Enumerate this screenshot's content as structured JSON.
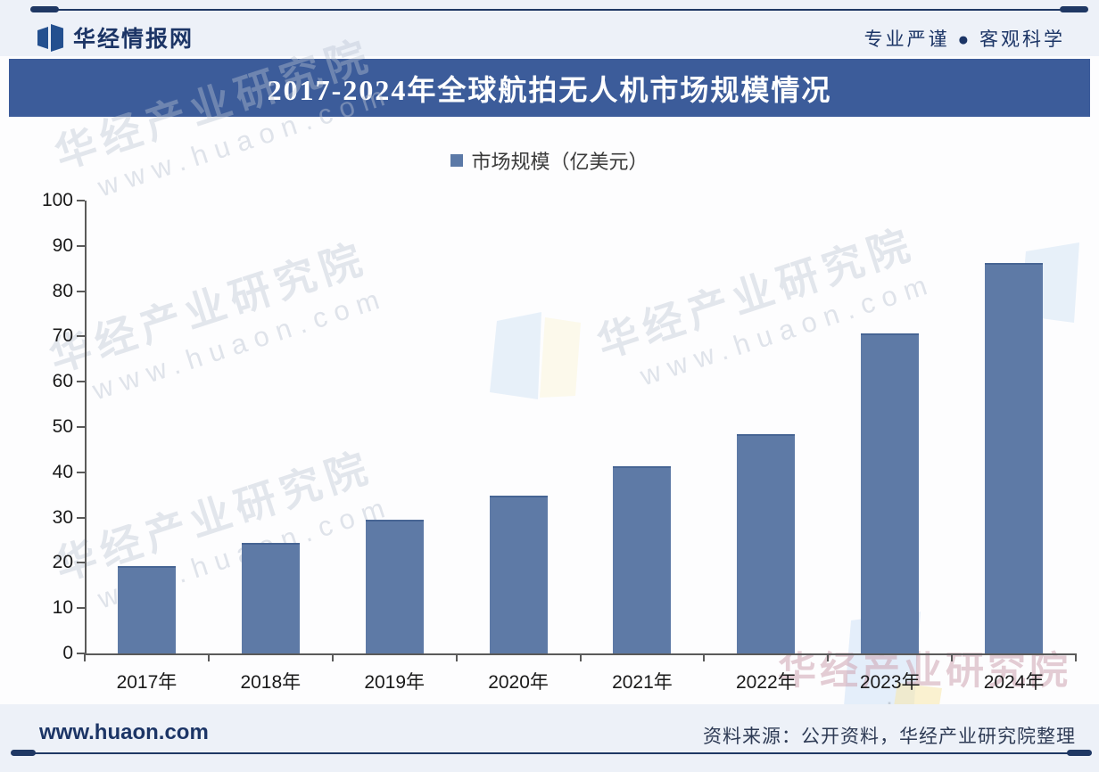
{
  "header": {
    "brand": "华经情报网",
    "slogan": "专业严谨 ● 客观科学"
  },
  "title": "2017-2024年全球航拍无人机市场规模情况",
  "legend": {
    "label": "市场规模（亿美元）"
  },
  "chart_data": {
    "type": "bar",
    "title": "2017-2024年全球航拍无人机市场规模情况",
    "categories": [
      "2017年",
      "2018年",
      "2019年",
      "2020年",
      "2021年",
      "2022年",
      "2023年",
      "2024年"
    ],
    "values": [
      19.3,
      24.4,
      29.6,
      34.9,
      41.3,
      48.4,
      70.7,
      86.2
    ],
    "series_name": "市场规模（亿美元）",
    "ylabel": "",
    "xlabel": "",
    "ylim": [
      0,
      100
    ],
    "ytick_step": 10,
    "grid": false,
    "legend_position": "top-center",
    "bar_color": "#5e7aa6"
  },
  "watermark": {
    "text": "华经产业研究院",
    "url": "www.huaon.com"
  },
  "footer": {
    "site": "www.huaon.com",
    "source": "资料来源：公开资料，华经产业研究院整理"
  },
  "colors": {
    "banner": "#3c5c9a",
    "bar": "#5e7aa6",
    "navy": "#1f3864",
    "strip_bg": "#edf1f8",
    "axis": "#5a5a5a"
  }
}
